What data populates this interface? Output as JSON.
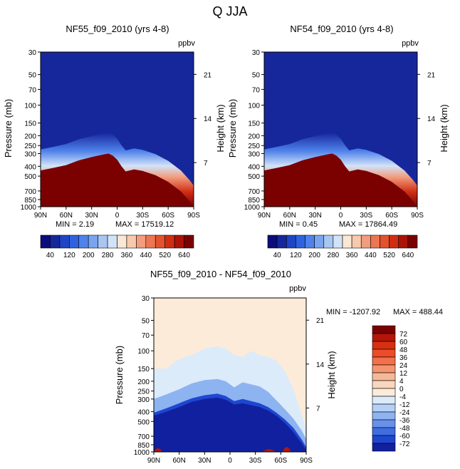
{
  "figure": {
    "title": "Q JJA",
    "units": "ppbv",
    "ylabel": "Pressure (mb)",
    "ylabel_right": "Height (km)"
  },
  "chart_data": [
    {
      "type": "heatmap",
      "title": "NF55_f09_2010 (yrs 4-8)",
      "units": "ppbv",
      "xlabel": "",
      "ylabel": "Pressure (mb)",
      "ylabel_right": "Height (km)",
      "x_ticks": [
        "90N",
        "60N",
        "30N",
        "0",
        "30S",
        "60S",
        "90S"
      ],
      "y_ticks": [
        30,
        50,
        70,
        100,
        150,
        200,
        250,
        300,
        400,
        500,
        700,
        850,
        1000
      ],
      "height_ticks": [
        7,
        14,
        21
      ],
      "min_label": "MIN =    2.19",
      "max_label": "MAX = 17519.12",
      "tropopause_profile": {
        "lat": [
          90,
          75,
          60,
          45,
          30,
          15,
          10,
          5,
          0,
          -5,
          -10,
          -20,
          -30,
          -45,
          -60,
          -75,
          -85,
          -90
        ],
        "boundary_mb": [
          440,
          415,
          390,
          350,
          325,
          305,
          300,
          315,
          345,
          400,
          450,
          430,
          445,
          490,
          570,
          710,
          880,
          1000
        ]
      },
      "colorbar": {
        "labels": [
          "40",
          "120",
          "200",
          "280",
          "360",
          "440",
          "520",
          "640"
        ],
        "colors": [
          "#0a0d7a",
          "#16279c",
          "#1f44c4",
          "#2f62df",
          "#4f82ea",
          "#7aa4ef",
          "#a8c6f2",
          "#d2e3f8",
          "#fbe7d4",
          "#f7c9ad",
          "#f29d7e",
          "#ec7652",
          "#e3522f",
          "#d02e14",
          "#aa1406",
          "#7b0100"
        ]
      }
    },
    {
      "type": "heatmap",
      "title": "NF54_f09_2010 (yrs 4-8)",
      "units": "ppbv",
      "xlabel": "",
      "ylabel": "Pressure (mb)",
      "ylabel_right": "Height (km)",
      "x_ticks": [
        "90N",
        "60N",
        "30N",
        "0",
        "30S",
        "60S",
        "90S"
      ],
      "y_ticks": [
        30,
        50,
        70,
        100,
        150,
        200,
        250,
        300,
        400,
        500,
        700,
        850,
        1000
      ],
      "height_ticks": [
        7,
        14,
        21
      ],
      "min_label": "MIN =    0.45",
      "max_label": "MAX = 17864.49",
      "tropopause_profile": {
        "lat": [
          90,
          75,
          60,
          45,
          30,
          15,
          10,
          5,
          0,
          -5,
          -10,
          -20,
          -30,
          -45,
          -60,
          -75,
          -85,
          -90
        ],
        "boundary_mb": [
          440,
          415,
          390,
          350,
          325,
          305,
          300,
          315,
          345,
          400,
          450,
          430,
          445,
          490,
          570,
          710,
          880,
          1000
        ]
      },
      "colorbar": {
        "labels": [
          "40",
          "120",
          "200",
          "280",
          "360",
          "440",
          "520",
          "640"
        ],
        "colors": [
          "#0a0d7a",
          "#16279c",
          "#1f44c4",
          "#2f62df",
          "#4f82ea",
          "#7aa4ef",
          "#a8c6f2",
          "#d2e3f8",
          "#fbe7d4",
          "#f7c9ad",
          "#f29d7e",
          "#ec7652",
          "#e3522f",
          "#d02e14",
          "#aa1406",
          "#7b0100"
        ]
      }
    },
    {
      "type": "heatmap",
      "title": "NF55_f09_2010 - NF54_f09_2010",
      "units": "ppbv",
      "xlabel": "",
      "ylabel": "Pressure (mb)",
      "ylabel_right": "Height (km)",
      "x_ticks": [
        "90N",
        "60N",
        "30N",
        "0",
        "30S",
        "60S",
        "90S"
      ],
      "y_ticks": [
        30,
        50,
        70,
        100,
        150,
        200,
        250,
        300,
        400,
        500,
        700,
        850,
        1000
      ],
      "height_ticks": [
        7,
        14,
        21
      ],
      "min_label": "MIN = -1207.92",
      "max_label": "MAX = 488.44",
      "difference_contours": [
        {
          "level": "0",
          "lat": [
            90,
            75,
            60,
            45,
            30,
            15,
            5,
            -5,
            -15,
            -25,
            -35,
            -45,
            -55,
            -65,
            -75,
            -85,
            -90
          ],
          "top_mb": [
            150,
            150,
            120,
            110,
            95,
            90,
            95,
            110,
            115,
            100,
            110,
            115,
            125,
            160,
            240,
            440,
            600
          ]
        },
        {
          "level": "-12",
          "lat": [
            90,
            75,
            60,
            45,
            30,
            15,
            5,
            -5,
            -15,
            -25,
            -35,
            -45,
            -55,
            -65,
            -75,
            -85,
            -90
          ],
          "top_mb": [
            300,
            270,
            240,
            210,
            195,
            190,
            200,
            230,
            205,
            215,
            225,
            255,
            310,
            380,
            470,
            620,
            750
          ]
        },
        {
          "level": "-48",
          "lat": [
            90,
            75,
            60,
            45,
            30,
            15,
            5,
            -5,
            -15,
            -25,
            -35,
            -45,
            -55,
            -65,
            -75,
            -85,
            -90
          ],
          "top_mb": [
            410,
            370,
            330,
            295,
            275,
            265,
            280,
            315,
            300,
            315,
            330,
            360,
            410,
            480,
            580,
            760,
            900
          ]
        },
        {
          "level": "-72",
          "lat": [
            90,
            75,
            60,
            45,
            30,
            15,
            5,
            -5,
            -15,
            -25,
            -35,
            -45,
            -55,
            -65,
            -75,
            -85,
            -90
          ],
          "top_mb": [
            440,
            400,
            360,
            320,
            300,
            290,
            305,
            340,
            330,
            345,
            360,
            390,
            440,
            520,
            640,
            830,
            960
          ]
        }
      ],
      "colorbar": {
        "labels": [
          "72",
          "60",
          "48",
          "36",
          "24",
          "12",
          "4",
          "0",
          "-4",
          "-12",
          "-24",
          "-36",
          "-48",
          "-60",
          "-72"
        ],
        "colors": [
          "#7b0100",
          "#b51608",
          "#d8300f",
          "#ec4d28",
          "#f2714b",
          "#f5956f",
          "#f6b898",
          "#f9d6be",
          "#fcebd9",
          "#dcebfa",
          "#b4d0f6",
          "#8eb3f1",
          "#6791ea",
          "#3f6de2",
          "#1f46d0",
          "#10209f"
        ]
      }
    }
  ]
}
